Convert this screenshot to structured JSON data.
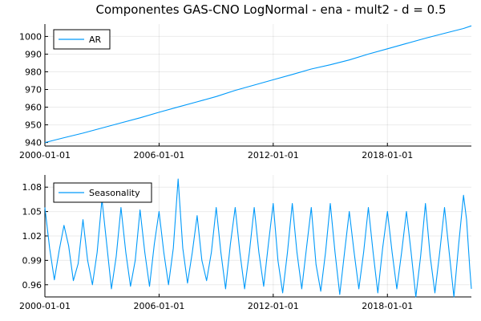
{
  "figure_title": "Componentes GAS-CNO LogNormal - ena - mult2 - d = 0.5",
  "accent_color": "#009AFA",
  "chart_data": [
    {
      "type": "line",
      "title": "Componentes GAS-CNO LogNormal - ena - mult2 - d = 0.5",
      "xlabel": "",
      "ylabel": "",
      "x_range": [
        "2000-01-01",
        "2022-06-01"
      ],
      "x_ticks": [
        "2000-01-01",
        "2006-01-01",
        "2012-01-01",
        "2018-01-01"
      ],
      "ylim": [
        938,
        1007
      ],
      "y_ticks": [
        940,
        950,
        960,
        970,
        980,
        990,
        1000
      ],
      "y_tick_labels": [
        "940",
        "950",
        "960",
        "970",
        "980",
        "990",
        "1000"
      ],
      "grid": true,
      "legend": "top-left",
      "series": [
        {
          "name": "AR",
          "color": "#009AFA",
          "points": [
            [
              "2000-01-01",
              940.0
            ],
            [
              "2001-01-01",
              942.7
            ],
            [
              "2002-01-01",
              945.3
            ],
            [
              "2003-01-01",
              948.2
            ],
            [
              "2004-01-01",
              951.1
            ],
            [
              "2005-01-01",
              954.0
            ],
            [
              "2006-01-01",
              957.1
            ],
            [
              "2007-01-01",
              960.1
            ],
            [
              "2008-01-01",
              963.0
            ],
            [
              "2009-01-01",
              966.0
            ],
            [
              "2010-01-01",
              969.5
            ],
            [
              "2011-01-01",
              972.5
            ],
            [
              "2012-01-01",
              975.5
            ],
            [
              "2013-01-01",
              978.5
            ],
            [
              "2014-01-01",
              981.6
            ],
            [
              "2015-01-01",
              984.0
            ],
            [
              "2016-01-01",
              986.7
            ],
            [
              "2017-01-01",
              990.0
            ],
            [
              "2018-01-01",
              993.0
            ],
            [
              "2019-01-01",
              996.0
            ],
            [
              "2020-01-01",
              999.0
            ],
            [
              "2021-01-01",
              1001.8
            ],
            [
              "2022-01-01",
              1004.5
            ],
            [
              "2022-06-01",
              1006.0
            ]
          ]
        }
      ]
    },
    {
      "type": "line",
      "title": "",
      "xlabel": "",
      "ylabel": "",
      "x_range": [
        "2000-01-01",
        "2022-06-01"
      ],
      "x_ticks": [
        "2000-01-01",
        "2006-01-01",
        "2012-01-01",
        "2018-01-01"
      ],
      "ylim": [
        0.945,
        1.095
      ],
      "y_ticks": [
        0.96,
        0.99,
        1.02,
        1.05,
        1.08
      ],
      "y_tick_labels": [
        "0.96",
        "0.99",
        "1.02",
        "1.05",
        "1.08"
      ],
      "grid": true,
      "legend": "top-left",
      "series": [
        {
          "name": "Seasonality",
          "color": "#009AFA",
          "points": [
            [
              "2000-01-01",
              1.055
            ],
            [
              "2000-04-01",
              1.005
            ],
            [
              "2000-07-01",
              0.966
            ],
            [
              "2000-10-01",
              1.002
            ],
            [
              "2001-01-01",
              1.033
            ],
            [
              "2001-04-01",
              1.008
            ],
            [
              "2001-07-01",
              0.965
            ],
            [
              "2001-10-01",
              0.986
            ],
            [
              "2002-01-01",
              1.04
            ],
            [
              "2002-04-01",
              0.99
            ],
            [
              "2002-07-01",
              0.96
            ],
            [
              "2002-10-01",
              1.0
            ],
            [
              "2003-01-01",
              1.065
            ],
            [
              "2003-04-01",
              1.01
            ],
            [
              "2003-07-01",
              0.955
            ],
            [
              "2003-10-01",
              0.995
            ],
            [
              "2004-01-01",
              1.055
            ],
            [
              "2004-04-01",
              1.0
            ],
            [
              "2004-07-01",
              0.958
            ],
            [
              "2004-10-01",
              0.99
            ],
            [
              "2005-01-01",
              1.052
            ],
            [
              "2005-04-01",
              1.0
            ],
            [
              "2005-07-01",
              0.958
            ],
            [
              "2005-10-01",
              1.01
            ],
            [
              "2006-01-01",
              1.05
            ],
            [
              "2006-04-01",
              1.0
            ],
            [
              "2006-07-01",
              0.96
            ],
            [
              "2006-10-01",
              1.005
            ],
            [
              "2007-01-01",
              1.09
            ],
            [
              "2007-04-01",
              1.005
            ],
            [
              "2007-07-01",
              0.962
            ],
            [
              "2007-10-01",
              1.0
            ],
            [
              "2008-01-01",
              1.045
            ],
            [
              "2008-04-01",
              0.99
            ],
            [
              "2008-07-01",
              0.965
            ],
            [
              "2008-10-01",
              1.0
            ],
            [
              "2009-01-01",
              1.055
            ],
            [
              "2009-04-01",
              1.0
            ],
            [
              "2009-07-01",
              0.955
            ],
            [
              "2009-10-01",
              1.01
            ],
            [
              "2010-01-01",
              1.055
            ],
            [
              "2010-04-01",
              1.0
            ],
            [
              "2010-07-01",
              0.955
            ],
            [
              "2010-10-01",
              1.0
            ],
            [
              "2011-01-01",
              1.055
            ],
            [
              "2011-04-01",
              1.0
            ],
            [
              "2011-07-01",
              0.958
            ],
            [
              "2011-10-01",
              1.01
            ],
            [
              "2012-01-01",
              1.06
            ],
            [
              "2012-04-01",
              0.99
            ],
            [
              "2012-07-01",
              0.95
            ],
            [
              "2012-10-01",
              1.0
            ],
            [
              "2013-01-01",
              1.06
            ],
            [
              "2013-04-01",
              1.0
            ],
            [
              "2013-07-01",
              0.955
            ],
            [
              "2013-10-01",
              1.005
            ],
            [
              "2014-01-01",
              1.055
            ],
            [
              "2014-04-01",
              0.985
            ],
            [
              "2014-07-01",
              0.952
            ],
            [
              "2014-10-01",
              1.0
            ],
            [
              "2015-01-01",
              1.06
            ],
            [
              "2015-04-01",
              1.0
            ],
            [
              "2015-07-01",
              0.948
            ],
            [
              "2015-10-01",
              1.0
            ],
            [
              "2016-01-01",
              1.05
            ],
            [
              "2016-04-01",
              1.0
            ],
            [
              "2016-07-01",
              0.955
            ],
            [
              "2016-10-01",
              1.0
            ],
            [
              "2017-01-01",
              1.055
            ],
            [
              "2017-04-01",
              1.0
            ],
            [
              "2017-07-01",
              0.95
            ],
            [
              "2017-10-01",
              1.005
            ],
            [
              "2018-01-01",
              1.05
            ],
            [
              "2018-04-01",
              1.0
            ],
            [
              "2018-07-01",
              0.955
            ],
            [
              "2018-10-01",
              1.0
            ],
            [
              "2019-01-01",
              1.05
            ],
            [
              "2019-04-01",
              1.0
            ],
            [
              "2019-07-01",
              0.945
            ],
            [
              "2019-10-01",
              0.995
            ],
            [
              "2020-01-01",
              1.06
            ],
            [
              "2020-04-01",
              0.995
            ],
            [
              "2020-07-01",
              0.95
            ],
            [
              "2020-10-01",
              1.0
            ],
            [
              "2021-01-01",
              1.055
            ],
            [
              "2021-04-01",
              1.0
            ],
            [
              "2021-07-01",
              0.945
            ],
            [
              "2021-10-01",
              1.01
            ],
            [
              "2022-01-01",
              1.07
            ],
            [
              "2022-03-01",
              1.04
            ],
            [
              "2022-05-01",
              0.98
            ],
            [
              "2022-06-01",
              0.955
            ]
          ]
        }
      ]
    }
  ]
}
